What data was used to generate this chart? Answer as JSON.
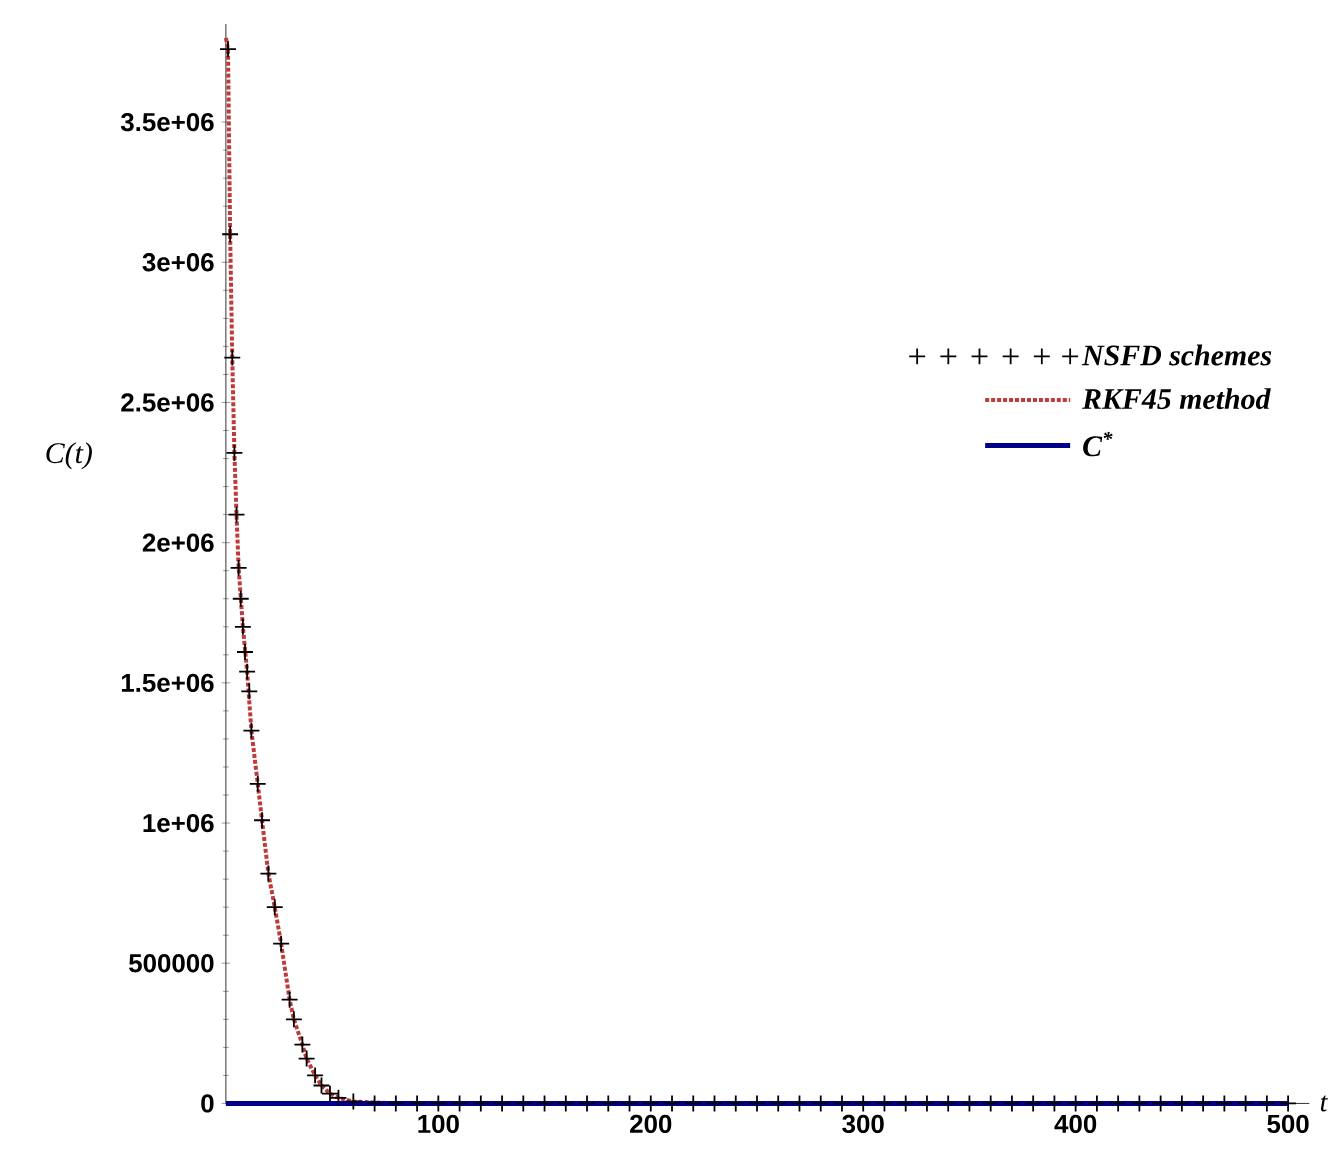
{
  "chart_data": {
    "type": "line",
    "xlabel": "t",
    "ylabel": "C(t)",
    "xlim": [
      0,
      510
    ],
    "ylim": [
      0,
      3850000
    ],
    "xticks": [
      100,
      200,
      300,
      400,
      500
    ],
    "yticks": [
      0,
      500000,
      {
        "value": 1000000,
        "label": "1e+06"
      },
      {
        "value": 1500000,
        "label": "1.5e+06"
      },
      {
        "value": 2000000,
        "label": "2e+06"
      },
      {
        "value": 2500000,
        "label": "2.5e+06"
      },
      {
        "value": 3000000,
        "label": "3e+06"
      },
      {
        "value": 3500000,
        "label": "3.5e+06"
      }
    ],
    "legend": "right",
    "series": [
      {
        "name": "NSFD schemes",
        "type": "scatter",
        "marker": "cross",
        "color": "#000000",
        "x": [
          1,
          2,
          3,
          4,
          5,
          6,
          7,
          8,
          9,
          10,
          11,
          12,
          15,
          17,
          20,
          23,
          26,
          30,
          32,
          36,
          38,
          42,
          45,
          49,
          53,
          60,
          70,
          80,
          90,
          100,
          110,
          120,
          130,
          140,
          150,
          160,
          170,
          180,
          190,
          200,
          210,
          220,
          230,
          240,
          250,
          260,
          270,
          280,
          290,
          300,
          310,
          320,
          330,
          340,
          350,
          360,
          370,
          380,
          390,
          400,
          410,
          420,
          430,
          440,
          450,
          460,
          470,
          480,
          490,
          500
        ],
        "values": [
          3760000,
          3100000,
          2660000,
          2320000,
          2100000,
          1910000,
          1800000,
          1700000,
          1610000,
          1540000,
          1470000,
          1330000,
          1140000,
          1010000,
          820000,
          700000,
          570000,
          370000,
          300000,
          210000,
          160000,
          100000,
          64000,
          35000,
          20000,
          7000,
          0,
          0,
          0,
          0,
          0,
          0,
          0,
          0,
          0,
          0,
          0,
          0,
          0,
          0,
          0,
          0,
          0,
          0,
          0,
          0,
          0,
          0,
          0,
          0,
          0,
          0,
          0,
          0,
          0,
          0,
          0,
          0,
          0,
          0,
          0,
          0,
          0,
          0,
          0,
          0,
          0,
          0,
          0,
          0
        ]
      },
      {
        "name": "RKF45 method",
        "line_style": "dotted",
        "color": "#c0393b",
        "x": [
          0,
          1,
          2,
          3,
          4,
          5,
          6,
          8,
          10,
          12,
          15,
          17,
          20,
          23,
          26,
          30,
          32,
          36,
          38,
          42,
          45,
          49,
          53,
          60,
          80,
          500
        ],
        "values": [
          3800000,
          3760000,
          3100000,
          2660000,
          2320000,
          2100000,
          1910000,
          1700000,
          1540000,
          1330000,
          1140000,
          1010000,
          820000,
          700000,
          570000,
          370000,
          300000,
          210000,
          160000,
          100000,
          64000,
          35000,
          20000,
          7000,
          0,
          0
        ]
      },
      {
        "name": "C$^{*}$",
        "line_style": "solid",
        "color": "#00008b",
        "x": [
          0,
          500
        ],
        "values": [
          0,
          0
        ]
      }
    ]
  }
}
